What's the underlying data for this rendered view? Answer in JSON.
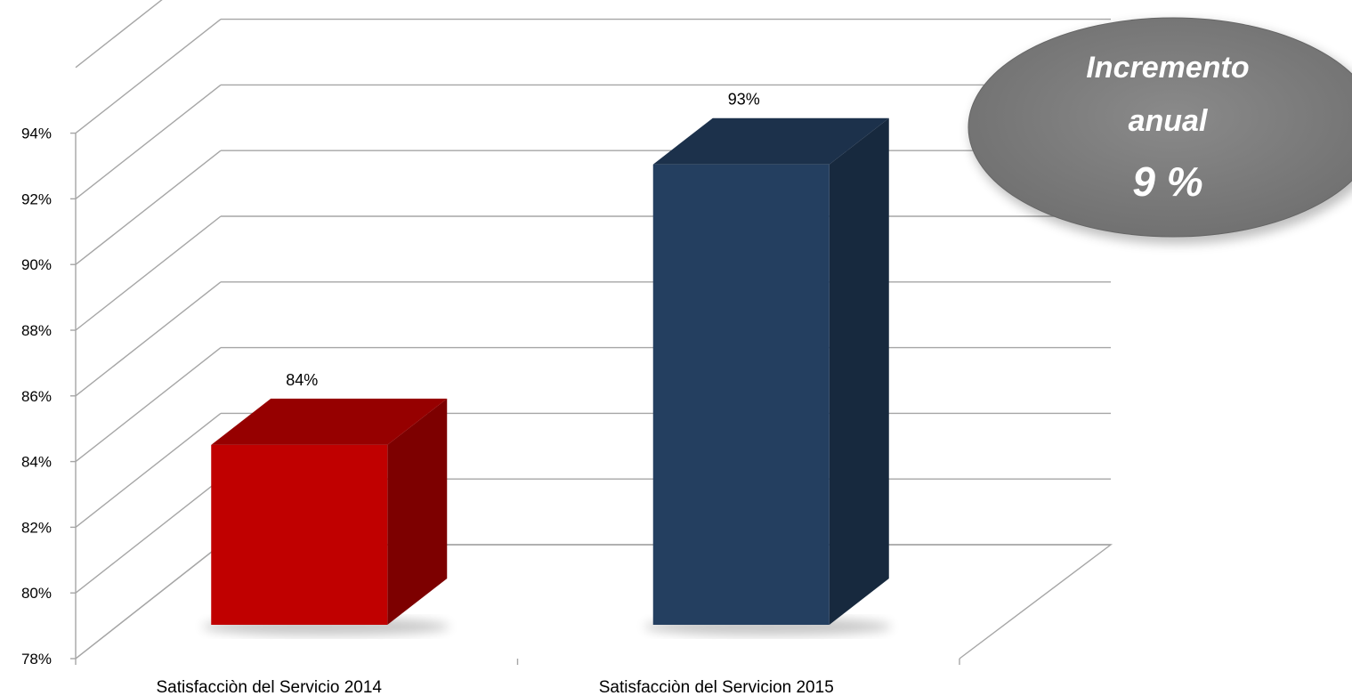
{
  "chart_data": {
    "type": "bar",
    "categories": [
      "Satisfacciòn del Servicio 2014",
      "Satisfacciòn del Servicion 2015"
    ],
    "values": [
      84,
      93
    ],
    "data_labels": [
      "84%",
      "93%"
    ],
    "ylim": [
      78,
      94
    ],
    "y_ticks": [
      78,
      80,
      82,
      84,
      86,
      88,
      90,
      92,
      94
    ],
    "y_tick_labels": [
      "78%",
      "80%",
      "82%",
      "84%",
      "86%",
      "88%",
      "90%",
      "92%",
      "94%"
    ],
    "grid": true,
    "three_d": true,
    "bar_colors": [
      "#c00000",
      "#243f60"
    ],
    "title": "",
    "xlabel": "",
    "ylabel": ""
  },
  "callout": {
    "line1": "Incremento",
    "line2": "anual",
    "value": "9 %",
    "color": "#7f7f7f"
  }
}
